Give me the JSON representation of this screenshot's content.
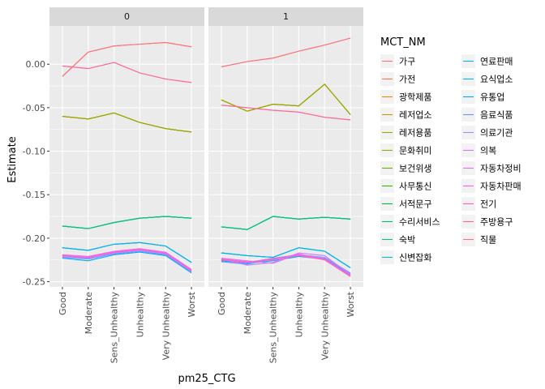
{
  "chart_data": {
    "type": "line",
    "facet_labels": [
      "0",
      "1"
    ],
    "xlabel": "pm25_CTG",
    "ylabel": "Estimate",
    "categories": [
      "Good",
      "Moderate",
      "Sens_Unhealthy",
      "Unhealthy",
      "Very Unhealthy",
      "Worst"
    ],
    "y_ticks": [
      0.0,
      -0.05,
      -0.1,
      -0.15,
      -0.2,
      -0.25
    ],
    "y_tick_labels": [
      "0.00",
      "-0.05",
      "-0.10",
      "-0.15",
      "-0.20",
      "-0.25"
    ],
    "ylim": [
      -0.256,
      0.044
    ],
    "legend_title": "MCT_NM",
    "legend_placement": "right",
    "grid": true,
    "series": [
      {
        "name": "가구",
        "color": "#F8766D",
        "panels": [
          [
            -0.002,
            -0.005,
            0.002,
            -0.01,
            -0.017,
            -0.021
          ],
          [
            -0.047,
            -0.05,
            -0.053,
            -0.055,
            -0.061,
            -0.064
          ]
        ]
      },
      {
        "name": "가전",
        "color": "#F27E4E",
        "panels": [
          [
            -0.014,
            0.014,
            0.021,
            0.023,
            0.025,
            0.02
          ],
          [
            -0.003,
            0.003,
            0.007,
            0.015,
            0.022,
            0.03
          ]
        ]
      },
      {
        "name": "광학제품",
        "color": "#D89000",
        "panels": [
          [
            -0.06,
            -0.063,
            -0.056,
            -0.067,
            -0.074,
            -0.078
          ],
          [
            -0.041,
            -0.054,
            -0.046,
            -0.048,
            -0.023,
            -0.058
          ]
        ]
      },
      {
        "name": "레저업소",
        "color": "#C49A00",
        "panels": [
          [
            -0.06,
            -0.063,
            -0.056,
            -0.067,
            -0.074,
            -0.078
          ],
          [
            -0.041,
            -0.054,
            -0.046,
            -0.048,
            -0.023,
            -0.058
          ]
        ]
      },
      {
        "name": "레저용품",
        "color": "#A3A500",
        "panels": [
          [
            -0.06,
            -0.063,
            -0.056,
            -0.067,
            -0.074,
            -0.078
          ],
          [
            -0.041,
            -0.054,
            -0.046,
            -0.048,
            -0.023,
            -0.058
          ]
        ]
      },
      {
        "name": "문화취미",
        "color": "#99A800",
        "panels": [
          [
            -0.06,
            -0.063,
            -0.056,
            -0.067,
            -0.074,
            -0.078
          ],
          [
            -0.041,
            -0.054,
            -0.046,
            -0.048,
            -0.023,
            -0.058
          ]
        ]
      },
      {
        "name": "보건위생",
        "color": "#6BB100",
        "panels": [
          [
            -0.186,
            -0.189,
            -0.182,
            -0.177,
            -0.175,
            -0.177
          ],
          [
            -0.187,
            -0.19,
            -0.175,
            -0.178,
            -0.176,
            -0.178
          ]
        ]
      },
      {
        "name": "사무통신",
        "color": "#39B600",
        "panels": [
          [
            -0.186,
            -0.189,
            -0.182,
            -0.177,
            -0.175,
            -0.177
          ],
          [
            -0.187,
            -0.19,
            -0.175,
            -0.178,
            -0.176,
            -0.178
          ]
        ]
      },
      {
        "name": "서적문구",
        "color": "#00BA38",
        "panels": [
          [
            -0.186,
            -0.189,
            -0.182,
            -0.177,
            -0.175,
            -0.177
          ],
          [
            -0.187,
            -0.19,
            -0.175,
            -0.178,
            -0.176,
            -0.178
          ]
        ]
      },
      {
        "name": "수리서비스",
        "color": "#00BF74",
        "panels": [
          [
            -0.186,
            -0.189,
            -0.182,
            -0.177,
            -0.175,
            -0.177
          ],
          [
            -0.187,
            -0.19,
            -0.175,
            -0.178,
            -0.176,
            -0.178
          ]
        ]
      },
      {
        "name": "숙박",
        "color": "#00C19A",
        "panels": [
          [
            -0.186,
            -0.189,
            -0.182,
            -0.177,
            -0.175,
            -0.177
          ],
          [
            -0.187,
            -0.19,
            -0.175,
            -0.178,
            -0.176,
            -0.178
          ]
        ]
      },
      {
        "name": "신변잡화",
        "color": "#00BFC4",
        "panels": [
          [
            -0.211,
            -0.214,
            -0.207,
            -0.205,
            -0.209,
            -0.228
          ],
          [
            -0.217,
            -0.22,
            -0.222,
            -0.211,
            -0.215,
            -0.234
          ]
        ]
      },
      {
        "name": "연료판매",
        "color": "#00BAE0",
        "panels": [
          [
            -0.211,
            -0.214,
            -0.207,
            -0.205,
            -0.209,
            -0.228
          ],
          [
            -0.217,
            -0.22,
            -0.222,
            -0.211,
            -0.215,
            -0.234
          ]
        ]
      },
      {
        "name": "요식업소",
        "color": "#00B2F3",
        "panels": [
          [
            -0.211,
            -0.214,
            -0.207,
            -0.205,
            -0.209,
            -0.228
          ],
          [
            -0.217,
            -0.22,
            -0.222,
            -0.211,
            -0.215,
            -0.234
          ]
        ]
      },
      {
        "name": "유통업",
        "color": "#00A9FF",
        "panels": [
          [
            -0.223,
            -0.226,
            -0.219,
            -0.216,
            -0.22,
            -0.24
          ],
          [
            -0.226,
            -0.229,
            -0.226,
            -0.221,
            -0.224,
            -0.242
          ]
        ]
      },
      {
        "name": "음료식품",
        "color": "#619CFF",
        "panels": [
          [
            -0.222,
            -0.224,
            -0.218,
            -0.215,
            -0.219,
            -0.239
          ],
          [
            -0.227,
            -0.23,
            -0.224,
            -0.22,
            -0.223,
            -0.241
          ]
        ]
      },
      {
        "name": "의료기관",
        "color": "#9F8CFF",
        "panels": [
          [
            -0.22,
            -0.223,
            -0.216,
            -0.213,
            -0.217,
            -0.237
          ],
          [
            -0.225,
            -0.228,
            -0.223,
            -0.219,
            -0.222,
            -0.24
          ]
        ]
      },
      {
        "name": "의복",
        "color": "#C77CFF",
        "panels": [
          [
            -0.221,
            -0.223,
            -0.217,
            -0.214,
            -0.218,
            -0.238
          ],
          [
            -0.224,
            -0.231,
            -0.228,
            -0.217,
            -0.22,
            -0.242
          ]
        ]
      },
      {
        "name": "자동차정비",
        "color": "#E76BF3",
        "panels": [
          [
            -0.219,
            -0.221,
            -0.215,
            -0.212,
            -0.216,
            -0.236
          ],
          [
            -0.223,
            -0.226,
            -0.229,
            -0.218,
            -0.225,
            -0.244
          ]
        ]
      },
      {
        "name": "자동차판매",
        "color": "#F564E3",
        "panels": [
          [
            -0.22,
            -0.222,
            -0.216,
            -0.213,
            -0.217,
            -0.237
          ],
          [
            -0.224,
            -0.227,
            -0.225,
            -0.219,
            -0.224,
            -0.243
          ]
        ]
      },
      {
        "name": "전기",
        "color": "#FF61C3",
        "panels": [
          [
            -0.22,
            -0.222,
            -0.216,
            -0.213,
            -0.217,
            -0.237
          ],
          [
            -0.225,
            -0.228,
            -0.224,
            -0.22,
            -0.225,
            -0.244
          ]
        ]
      },
      {
        "name": "주방용구",
        "color": "#FF67A4",
        "panels": [
          [
            -0.002,
            -0.005,
            0.002,
            -0.01,
            -0.017,
            -0.021
          ],
          [
            -0.047,
            -0.05,
            -0.053,
            -0.055,
            -0.061,
            -0.064
          ]
        ]
      },
      {
        "name": "직물",
        "color": "#FC717F",
        "panels": [
          [
            -0.014,
            0.014,
            0.021,
            0.023,
            0.025,
            0.02
          ],
          [
            -0.003,
            0.003,
            0.007,
            0.015,
            0.022,
            0.03
          ]
        ]
      }
    ]
  }
}
